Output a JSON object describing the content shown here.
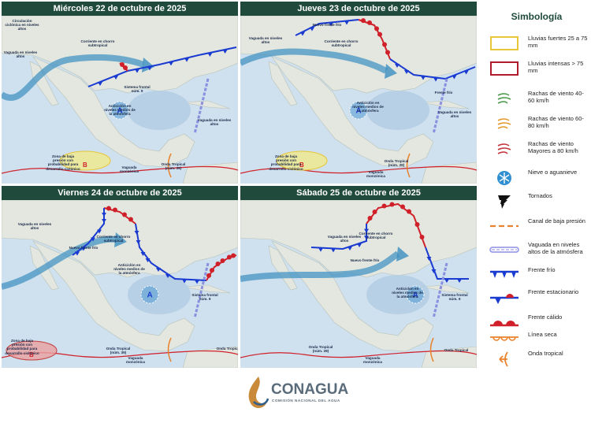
{
  "panels": [
    {
      "title": "Miércoles 22 de octubre de 2025",
      "labels": [
        "Circulación ciclónica en niveles altos",
        "Vaguada en niveles altos",
        "Corriente en chorro subtropical",
        "Sistema frontal núm. 9",
        "Anticiclón en niveles medios de la atmósfera",
        "Vaguada en niveles altos",
        "Zona de baja presión con probabilidad para desarrollo ciclónico",
        "Vaguada monzónica",
        "Onda Tropical (núm. 39)"
      ]
    },
    {
      "title": "Jueves 23 de octubre de 2025",
      "labels": [
        "Vaguada en niveles altos",
        "Nuevo frente frío",
        "Corriente en chorro subtropical",
        "Anticiclón en niveles medios de la atmósfera",
        "Frente frío",
        "Vaguada en niveles altos",
        "Zona de baja presión con probabilidad para desarrollo ciclónico",
        "Onda Tropical (núm. 39)",
        "Vaguada monzónica"
      ]
    },
    {
      "title": "Viernes 24 de octubre de 2025",
      "labels": [
        "Vaguada en niveles altos",
        "Nuevo frente frío",
        "Corriente en chorro subtropical",
        "Anticiclón en niveles medios de la atmósfera",
        "Sistema frontal núm. 9",
        "Zona de baja presión con probabilidad para desarrollo ciclónico",
        "Onda Tropical (núm. 39)",
        "Vaguada monzónica",
        "Onda Tropical"
      ]
    },
    {
      "title": "Sábado 25 de octubre de 2025",
      "labels": [
        "Vaguada en niveles altos",
        "Nuevo frente frío",
        "Corriente en chorro subtropical",
        "Anticiclón en niveles medios de la atmósfera",
        "Sistema frontal núm. 9",
        "Onda Tropical (núm. 39)",
        "Vaguada monzónica",
        "Onda Tropical"
      ]
    }
  ],
  "legend": {
    "title": "Simbología",
    "items": [
      "Lluvias fuertes 25 a 75 mm",
      "Lluvias intensas > 75 mm",
      "Rachas de viento 40-60 km/h",
      "Rachas de viento 60-80 km/h",
      "Rachas de viento Mayores a 80 km/h",
      "Nieve o aguanieve",
      "Tornados",
      "Canal de baja presión",
      "Vaguada en niveles altos de la atmósfera",
      "Frente frío",
      "Frente estacionario",
      "Frente cálido",
      "Línea seca",
      "Onda tropical"
    ]
  },
  "footer": {
    "brand": "CONAGUA",
    "subtitle": "COMISIÓN NACIONAL DEL AGUA"
  }
}
